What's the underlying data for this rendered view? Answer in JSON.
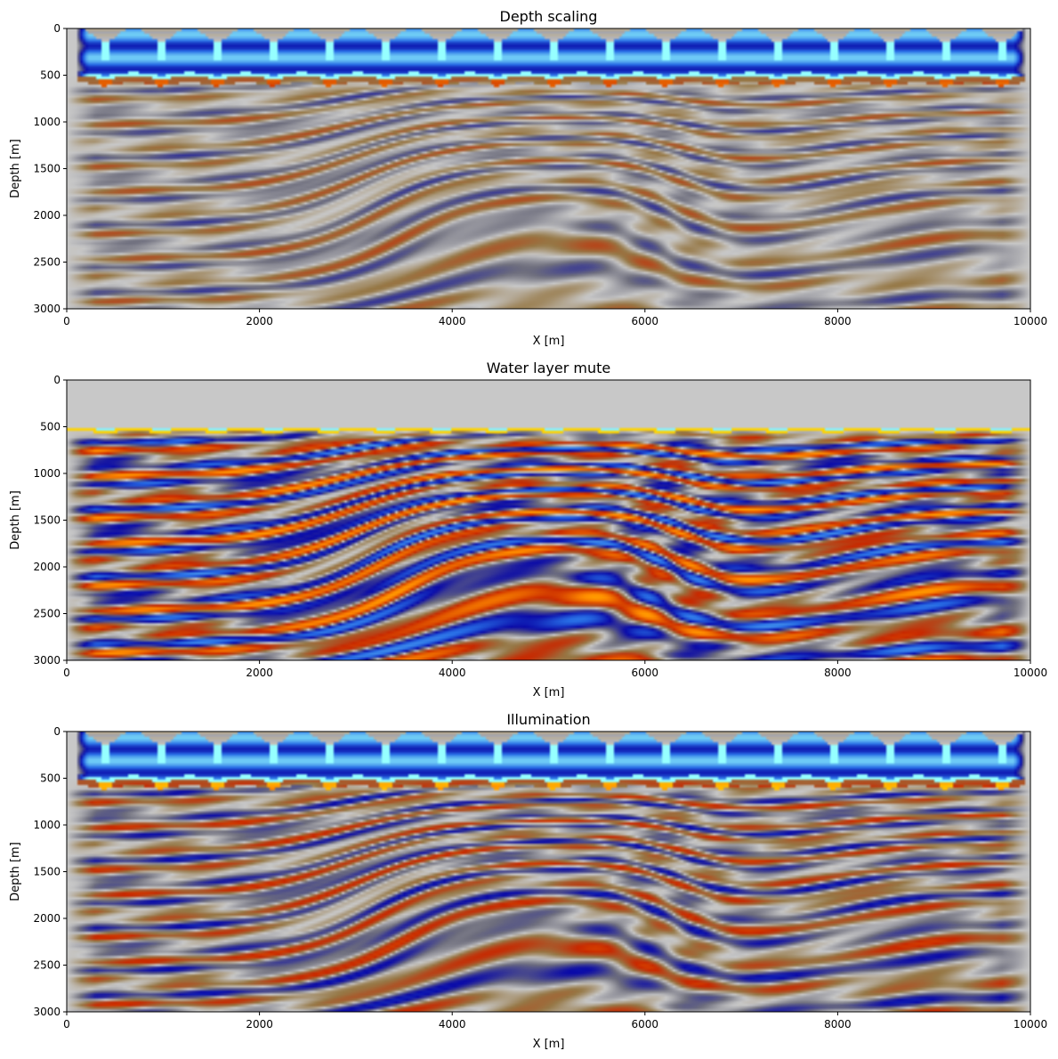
{
  "chart_data": [
    {
      "type": "heatmap",
      "title": "Depth scaling",
      "xlabel": "X [m]",
      "ylabel": "Depth [m]",
      "xlim": [
        0,
        10000
      ],
      "ylim": [
        3000,
        0
      ],
      "xticks": [
        "0",
        "2000",
        "4000",
        "6000",
        "8000",
        "10000"
      ],
      "yticks": [
        "0",
        "500",
        "1000",
        "1500",
        "2000",
        "2500",
        "3000"
      ],
      "colormap": "seismic",
      "water_bottom_depth": 550,
      "source_count": 17,
      "shallow_amplitude": 1.0,
      "deep_amplitude": 0.35
    },
    {
      "type": "heatmap",
      "title": "Water layer mute",
      "xlabel": "X [m]",
      "ylabel": "Depth [m]",
      "xlim": [
        0,
        10000
      ],
      "ylim": [
        3000,
        0
      ],
      "xticks": [
        "0",
        "2000",
        "4000",
        "6000",
        "8000",
        "10000"
      ],
      "yticks": [
        "0",
        "500",
        "1000",
        "1500",
        "2000",
        "2500",
        "3000"
      ],
      "colormap": "seismic",
      "water_bottom_depth": 550,
      "source_count": 17,
      "muted_above_depth": 520,
      "deep_amplitude": 1.0
    },
    {
      "type": "heatmap",
      "title": "Illumination",
      "xlabel": "X [m]",
      "ylabel": "Depth [m]",
      "xlim": [
        0,
        10000
      ],
      "ylim": [
        3000,
        0
      ],
      "xticks": [
        "0",
        "2000",
        "4000",
        "6000",
        "8000",
        "10000"
      ],
      "yticks": [
        "0",
        "500",
        "1000",
        "1500",
        "2000",
        "2500",
        "3000"
      ],
      "colormap": "seismic",
      "water_bottom_depth": 550,
      "source_count": 17,
      "shallow_amplitude": 1.0,
      "deep_amplitude": 0.55
    }
  ],
  "colors": {
    "background_gray": "#c8c8c8",
    "blue": "#0a0aa8",
    "cyan": "#96ffff",
    "red": "#c81a00",
    "yellow": "#ffff00",
    "brown": "#7a5a2a"
  }
}
